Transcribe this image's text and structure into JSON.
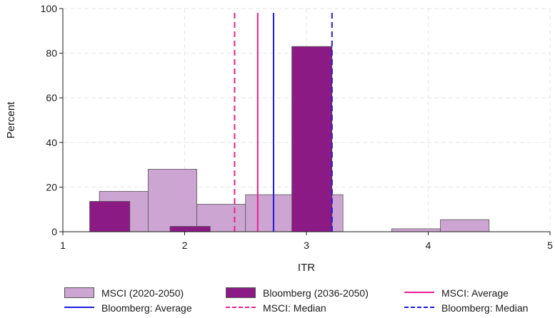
{
  "chart_data": {
    "type": "bar",
    "subtype": "histogram",
    "xlabel": "ITR",
    "ylabel": "Percent",
    "xlim": [
      1,
      5
    ],
    "ylim": [
      0,
      100
    ],
    "xticks": [
      1,
      2,
      3,
      4,
      5
    ],
    "yticks": [
      0,
      20,
      40,
      60,
      80,
      100
    ],
    "grid": true,
    "legend_position": "bottom",
    "series": [
      {
        "name": "MSCI (2020-2050)",
        "kind": "histogram",
        "fill": "#cda5d2",
        "bins": [
          {
            "x0": 1.3,
            "x1": 1.7,
            "value": 18.1
          },
          {
            "x0": 1.7,
            "x1": 2.1,
            "value": 28.0
          },
          {
            "x0": 2.1,
            "x1": 2.5,
            "value": 12.3
          },
          {
            "x0": 2.5,
            "x1": 2.9,
            "value": 16.6
          },
          {
            "x0": 2.9,
            "x1": 3.3,
            "value": 16.6
          },
          {
            "x0": 3.7,
            "x1": 4.1,
            "value": 1.3
          },
          {
            "x0": 4.1,
            "x1": 4.5,
            "value": 5.4
          }
        ]
      },
      {
        "name": "Bloomberg (2036-2050)",
        "kind": "histogram",
        "fill": "#8b1a85",
        "bins": [
          {
            "x0": 1.22,
            "x1": 1.55,
            "value": 13.6
          },
          {
            "x0": 1.88,
            "x1": 2.21,
            "value": 2.4
          },
          {
            "x0": 2.88,
            "x1": 3.21,
            "value": 83.0
          }
        ]
      },
      {
        "name": "MSCI: Average",
        "kind": "vline",
        "x": 2.6,
        "color": "#ea1f8c",
        "dash": false
      },
      {
        "name": "Bloomberg: Average",
        "kind": "vline",
        "x": 2.73,
        "color": "#1c1ce0",
        "dash": false
      },
      {
        "name": "MSCI: Median",
        "kind": "vline",
        "x": 2.41,
        "color": "#ea1f8c",
        "dash": true
      },
      {
        "name": "Bloomberg: Median",
        "kind": "vline",
        "x": 3.21,
        "color": "#1c1ce0",
        "dash": true
      }
    ]
  }
}
